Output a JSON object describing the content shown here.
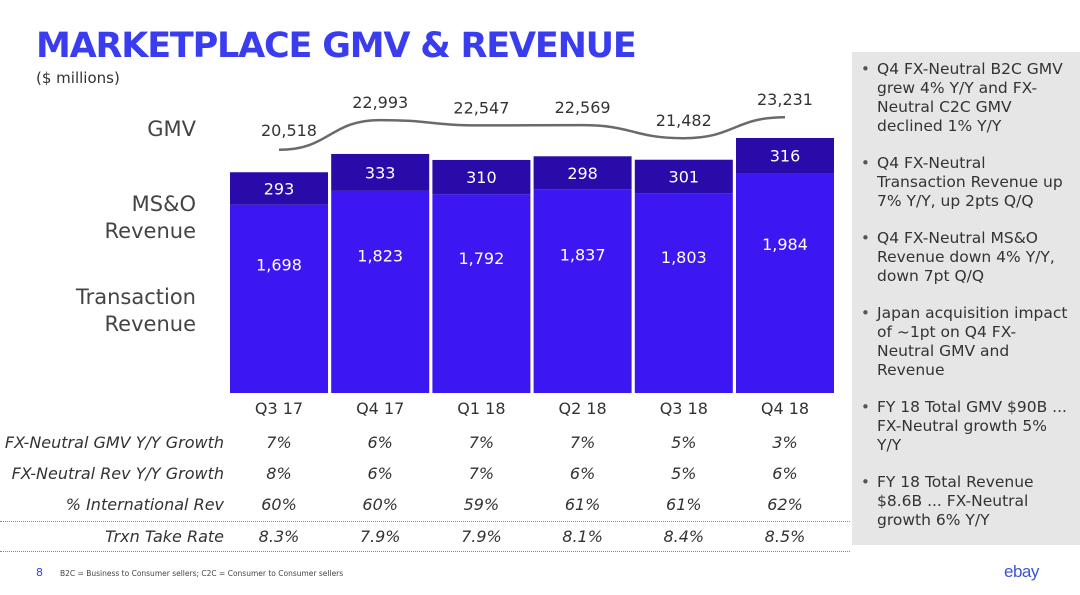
{
  "title": "MARKETPLACE GMV & REVENUE",
  "subtitle": "($ millions)",
  "row_labels": {
    "gmv": "GMV",
    "mso_line1": "MS&O",
    "mso_line2": "Revenue",
    "trx_line1": "Transaction",
    "trx_line2": "Revenue"
  },
  "colors": {
    "title": "#3a3cf0",
    "transaction": "#3c17f2",
    "mso": "#2a0aa8",
    "gmv_line": "#6a6a6a",
    "panel": "#e6e6e6"
  },
  "chart_data": {
    "type": "bar",
    "subtype": "stacked-bar-with-line",
    "categories": [
      "Q3 17",
      "Q4 17",
      "Q1 18",
      "Q2 18",
      "Q3 18",
      "Q4 18"
    ],
    "series": [
      {
        "name": "Transaction Revenue",
        "values": [
          1698,
          1823,
          1792,
          1837,
          1803,
          1984
        ],
        "labels": [
          "1,698",
          "1,823",
          "1,792",
          "1,837",
          "1,803",
          "1,984"
        ]
      },
      {
        "name": "MS&O Revenue",
        "values": [
          293,
          333,
          310,
          298,
          301,
          316
        ],
        "labels": [
          "293",
          "333",
          "310",
          "298",
          "301",
          "316"
        ]
      }
    ],
    "line": {
      "name": "GMV",
      "values": [
        20518,
        22993,
        22547,
        22569,
        21482,
        23231
      ],
      "labels": [
        "20,518",
        "22,993",
        "22,547",
        "22,569",
        "21,482",
        "23,231"
      ]
    },
    "ylim": [
      0,
      2300
    ],
    "grid": false
  },
  "metrics": [
    {
      "label": "FX-Neutral GMV Y/Y Growth",
      "values": [
        "7%",
        "6%",
        "7%",
        "7%",
        "5%",
        "3%"
      ]
    },
    {
      "label": "FX-Neutral Rev Y/Y Growth",
      "values": [
        "8%",
        "6%",
        "7%",
        "6%",
        "5%",
        "6%"
      ]
    },
    {
      "label": "% International Rev",
      "values": [
        "60%",
        "60%",
        "59%",
        "61%",
        "61%",
        "62%"
      ]
    },
    {
      "label": "Trxn Take Rate",
      "values": [
        "8.3%",
        "7.9%",
        "7.9%",
        "8.1%",
        "8.4%",
        "8.5%"
      ]
    }
  ],
  "bullets": [
    "Q4 FX-Neutral B2C GMV grew 4% Y/Y and FX-Neutral C2C GMV declined 1% Y/Y",
    "Q4 FX-Neutral Transaction Revenue up 7% Y/Y, up 2pts Q/Q",
    "Q4 FX-Neutral MS&O Revenue down 4% Y/Y, down 7pt Q/Q",
    "Japan acquisition impact of ~1pt on Q4 FX-Neutral GMV and Revenue",
    "FY 18 Total GMV $90B ... FX-Neutral growth 5% Y/Y",
    "FY 18 Total Revenue $8.6B ... FX-Neutral growth 6% Y/Y"
  ],
  "bullet_char": "•",
  "footer": {
    "page_number": "8",
    "note": "B2C = Business to Consumer sellers; C2C = Consumer to Consumer sellers",
    "logo": "ebay"
  }
}
